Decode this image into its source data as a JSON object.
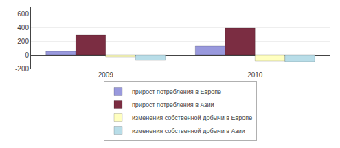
{
  "chart_data": {
    "type": "bar",
    "categories": [
      "2009",
      "2010"
    ],
    "series": [
      {
        "name": "прирост потребления в Европе",
        "color": "#9999dd",
        "values": [
          50,
          130
        ]
      },
      {
        "name": "прирост потребления в Азии",
        "color": "#7b2d42",
        "values": [
          290,
          390
        ]
      },
      {
        "name": "изменения собственной добычи в Европе",
        "color": "#ffffc0",
        "values": [
          -30,
          -90
        ]
      },
      {
        "name": "изменения собственной добычи в Азии",
        "color": "#b8dde8",
        "values": [
          -80,
          -100
        ]
      }
    ],
    "ylim": [
      -200,
      700
    ],
    "yticks": [
      -200,
      0,
      200,
      400,
      600
    ],
    "grid": true,
    "legend": "bottom"
  }
}
